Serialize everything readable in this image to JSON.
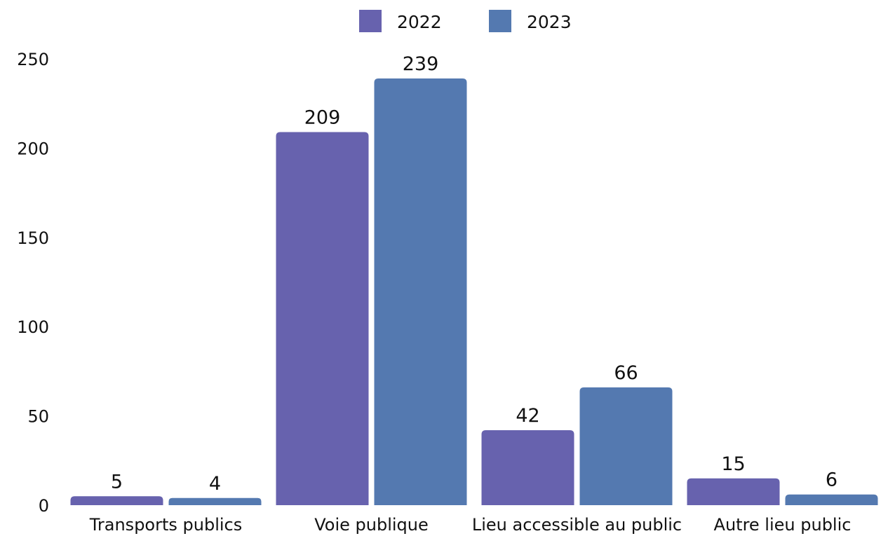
{
  "chart_data": {
    "type": "bar",
    "categories": [
      "Transports publics",
      "Voie publique",
      "Lieu accessible au public",
      "Autre lieu public"
    ],
    "series": [
      {
        "name": "2022",
        "values": [
          5,
          209,
          42,
          15
        ],
        "color": "#6762ae"
      },
      {
        "name": "2023",
        "values": [
          4,
          239,
          66,
          6
        ],
        "color": "#5479b0"
      }
    ],
    "y_ticks": [
      "0",
      "50",
      "100",
      "150",
      "200",
      "250"
    ],
    "ylim": [
      0,
      250
    ],
    "grid": false,
    "legend_position": "top-center"
  }
}
